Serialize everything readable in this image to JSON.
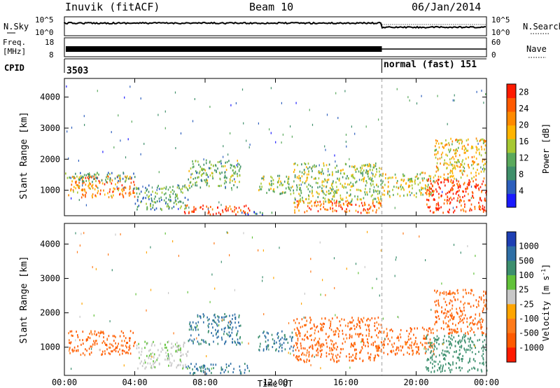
{
  "header": {
    "station": "Inuvik (fitACF)",
    "beam": "Beam 10",
    "date": "06/Jan/2014"
  },
  "sky_panel": {
    "left_label": "N.Sky",
    "right_label": "N.Search",
    "ticks_left": [
      "10^5",
      "10^0"
    ],
    "ticks_right": [
      "10^5",
      "10^0"
    ]
  },
  "freq_panel": {
    "left_label_1": "Freq.",
    "left_label_2": "[MHz]",
    "right_label": "Nave",
    "ticks_left": [
      "18",
      "8"
    ],
    "ticks_right": [
      "60",
      "0"
    ]
  },
  "cpid_panel": {
    "label": "CPID",
    "segment1": "3503",
    "segment2": "normal (fast) 151",
    "switch_time_hours": 18.05
  },
  "chart_data": [
    {
      "type": "heatmap",
      "title": "",
      "xlabel": "",
      "ylabel": "Slant Range [km]",
      "xlim_hours": [
        0,
        24
      ],
      "ylim_km": [
        180,
        4600
      ],
      "x_ticks": [
        "00:00",
        "04:00",
        "08:00",
        "12:00",
        "16:00",
        "20:00",
        "00:00"
      ],
      "y_ticks": [
        1000,
        2000,
        3000,
        4000
      ],
      "colorbar": {
        "label": "Power [dB]",
        "ticks": [
          4,
          8,
          12,
          16,
          20,
          24,
          28
        ],
        "range": [
          0,
          30
        ],
        "colors": [
          "#1a1aff",
          "#2d5fbd",
          "#3f8f6a",
          "#5aa95c",
          "#a6c832",
          "#ffb400",
          "#ff8a00",
          "#ff5a00",
          "#ff1a00"
        ]
      },
      "scatter_regions_hours_km_db": [
        {
          "t": [
            0.2,
            4.0
          ],
          "r": [
            800,
            1500
          ],
          "db": 22
        },
        {
          "t": [
            0.0,
            4.0
          ],
          "r": [
            1300,
            1600
          ],
          "db": 10
        },
        {
          "t": [
            4.0,
            7.0
          ],
          "r": [
            400,
            1200
          ],
          "db": 10
        },
        {
          "t": [
            6.8,
            10.5
          ],
          "r": [
            250,
            550
          ],
          "db": 26
        },
        {
          "t": [
            7.0,
            10.0
          ],
          "r": [
            1100,
            2000
          ],
          "db": 12
        },
        {
          "t": [
            9.8,
            11.8
          ],
          "r": [
            250,
            350
          ],
          "db": 8
        },
        {
          "t": [
            11.0,
            13.0
          ],
          "r": [
            900,
            1500
          ],
          "db": 14
        },
        {
          "t": [
            13.0,
            18.0
          ],
          "r": [
            600,
            1900
          ],
          "db": 14
        },
        {
          "t": [
            13.0,
            18.0
          ],
          "r": [
            300,
            700
          ],
          "db": 24
        },
        {
          "t": [
            18.0,
            21.0
          ],
          "r": [
            800,
            1600
          ],
          "db": 16
        },
        {
          "t": [
            20.5,
            24.0
          ],
          "r": [
            300,
            1400
          ],
          "db": 28
        },
        {
          "t": [
            21.0,
            24.0
          ],
          "r": [
            1400,
            2700
          ],
          "db": 18
        }
      ]
    },
    {
      "type": "heatmap",
      "title": "",
      "xlabel": "Time UT",
      "ylabel": "Slant Range [km]",
      "xlim_hours": [
        0,
        24
      ],
      "ylim_km": [
        180,
        4600
      ],
      "x_ticks": [
        "00:00",
        "04:00",
        "08:00",
        "12:00",
        "16:00",
        "20:00",
        "00:00"
      ],
      "y_ticks": [
        1000,
        2000,
        3000,
        4000
      ],
      "colorbar": {
        "label": "Velocity [m s",
        "label_sup": "-1",
        "label_end": "]",
        "ticks": [
          "1000",
          "500",
          "100",
          "25",
          "-25",
          "-100",
          "-500",
          "-1000"
        ],
        "colors": [
          "#1e3fb4",
          "#2e6fa6",
          "#3c8f6e",
          "#62c23a",
          "#c8c8c8",
          "#ffa500",
          "#ff7a1a",
          "#ff5a00",
          "#ff1a00"
        ]
      },
      "scatter_regions_hours_km_vel": [
        {
          "t": [
            0.2,
            4.0
          ],
          "r": [
            800,
            1500
          ],
          "v": -300
        },
        {
          "t": [
            4.0,
            7.0
          ],
          "r": [
            400,
            1200
          ],
          "v": 10
        },
        {
          "t": [
            6.8,
            10.5
          ],
          "r": [
            250,
            550
          ],
          "v": 300
        },
        {
          "t": [
            7.0,
            10.0
          ],
          "r": [
            1100,
            2000
          ],
          "v": 300
        },
        {
          "t": [
            11.0,
            13.0
          ],
          "r": [
            900,
            1500
          ],
          "v": 300
        },
        {
          "t": [
            13.0,
            18.0
          ],
          "r": [
            600,
            1900
          ],
          "v": -300
        },
        {
          "t": [
            18.0,
            21.0
          ],
          "r": [
            800,
            1600
          ],
          "v": -300
        },
        {
          "t": [
            20.5,
            24.0
          ],
          "r": [
            300,
            1400
          ],
          "v": 150
        },
        {
          "t": [
            21.0,
            24.0
          ],
          "r": [
            1400,
            2700
          ],
          "v": -300
        }
      ]
    }
  ]
}
